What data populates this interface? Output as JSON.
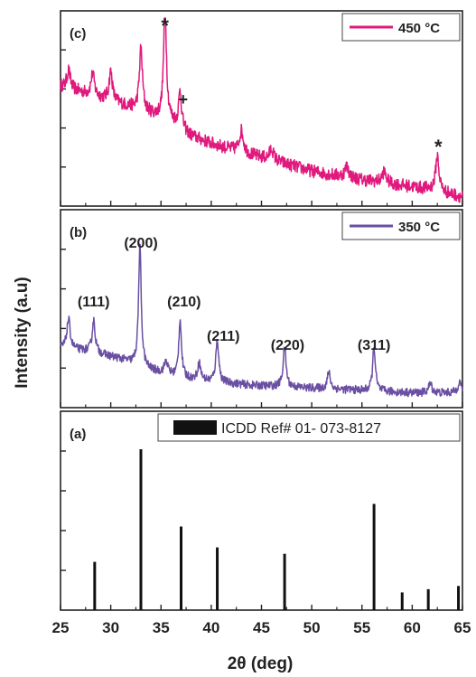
{
  "chart_data": {
    "type": "line",
    "xlabel": "2θ (deg)",
    "ylabel": "Intensity (a.u)",
    "xlim": [
      25,
      65
    ],
    "x_ticks": [
      25,
      30,
      35,
      40,
      45,
      50,
      55,
      60,
      65
    ],
    "grid": false,
    "panels": [
      {
        "label": "(c)",
        "legend": "450 °C",
        "legend_position": "top-right",
        "color": "#e0197d",
        "baseline": [
          [
            25,
            0.63
          ],
          [
            27,
            0.6
          ],
          [
            30,
            0.55
          ],
          [
            33,
            0.5
          ],
          [
            36,
            0.44
          ],
          [
            38,
            0.36
          ],
          [
            40,
            0.32
          ],
          [
            43,
            0.27
          ],
          [
            46,
            0.23
          ],
          [
            50,
            0.17
          ],
          [
            54,
            0.13
          ],
          [
            58,
            0.1
          ],
          [
            62,
            0.07
          ],
          [
            65,
            0.03
          ]
        ],
        "peaks": [
          {
            "x": 25.8,
            "h": 0.1,
            "w": 0.2
          },
          {
            "x": 28.2,
            "h": 0.12,
            "w": 0.2
          },
          {
            "x": 30.0,
            "h": 0.16,
            "w": 0.2
          },
          {
            "x": 33.0,
            "h": 0.34,
            "w": 0.18
          },
          {
            "x": 35.4,
            "h": 0.62,
            "w": 0.17
          },
          {
            "x": 36.9,
            "h": 0.2,
            "w": 0.17
          },
          {
            "x": 43.0,
            "h": 0.12,
            "w": 0.25
          },
          {
            "x": 46.0,
            "h": 0.06,
            "w": 0.25
          },
          {
            "x": 53.5,
            "h": 0.06,
            "w": 0.25
          },
          {
            "x": 57.2,
            "h": 0.06,
            "w": 0.25
          },
          {
            "x": 62.5,
            "h": 0.19,
            "w": 0.2
          }
        ],
        "noise": 0.035,
        "markers": [
          {
            "text": "*",
            "x": 35.4
          },
          {
            "text": "+",
            "x": 37.2
          },
          {
            "text": "*",
            "x": 62.6
          }
        ]
      },
      {
        "label": "(b)",
        "legend": "350 °C",
        "legend_position": "top-right",
        "color": "#6a4fa3",
        "baseline": [
          [
            25,
            0.3
          ],
          [
            28,
            0.28
          ],
          [
            31,
            0.24
          ],
          [
            34,
            0.18
          ],
          [
            37,
            0.14
          ],
          [
            40,
            0.12
          ],
          [
            44,
            0.1
          ],
          [
            48,
            0.09
          ],
          [
            52,
            0.08
          ],
          [
            56,
            0.07
          ],
          [
            60,
            0.06
          ],
          [
            65,
            0.06
          ]
        ],
        "peaks": [
          {
            "x": 25.8,
            "h": 0.16,
            "w": 0.2
          },
          {
            "x": 28.3,
            "h": 0.17,
            "w": 0.18
          },
          {
            "x": 32.9,
            "h": 0.64,
            "w": 0.16
          },
          {
            "x": 35.5,
            "h": 0.07,
            "w": 0.2
          },
          {
            "x": 36.9,
            "h": 0.31,
            "w": 0.16
          },
          {
            "x": 38.8,
            "h": 0.09,
            "w": 0.18
          },
          {
            "x": 40.6,
            "h": 0.23,
            "w": 0.17
          },
          {
            "x": 47.3,
            "h": 0.21,
            "w": 0.18
          },
          {
            "x": 51.7,
            "h": 0.09,
            "w": 0.18
          },
          {
            "x": 56.2,
            "h": 0.24,
            "w": 0.16
          },
          {
            "x": 61.8,
            "h": 0.05,
            "w": 0.2
          },
          {
            "x": 64.7,
            "h": 0.06,
            "w": 0.2
          }
        ],
        "noise": 0.022,
        "peak_labels": [
          {
            "text": "(111)",
            "x": 28.3
          },
          {
            "text": "(200)",
            "x": 33.0
          },
          {
            "text": "(210)",
            "x": 37.3
          },
          {
            "text": "(211)",
            "x": 41.2
          },
          {
            "text": "(220)",
            "x": 47.6
          },
          {
            "text": "(311)",
            "x": 56.2
          }
        ]
      },
      {
        "label": "(a)",
        "legend": "ICDD Ref# 01- 073-8127",
        "legend_position": "top-right",
        "color": "#111111",
        "type": "stick",
        "ylim": [
          0,
          100
        ],
        "sticks": [
          {
            "x": 28.4,
            "y": 30
          },
          {
            "x": 33.0,
            "y": 100
          },
          {
            "x": 37.0,
            "y": 52
          },
          {
            "x": 40.6,
            "y": 39
          },
          {
            "x": 47.3,
            "y": 35
          },
          {
            "x": 56.2,
            "y": 66
          },
          {
            "x": 59.0,
            "y": 11
          },
          {
            "x": 61.6,
            "y": 13
          },
          {
            "x": 64.6,
            "y": 15
          }
        ]
      }
    ]
  }
}
